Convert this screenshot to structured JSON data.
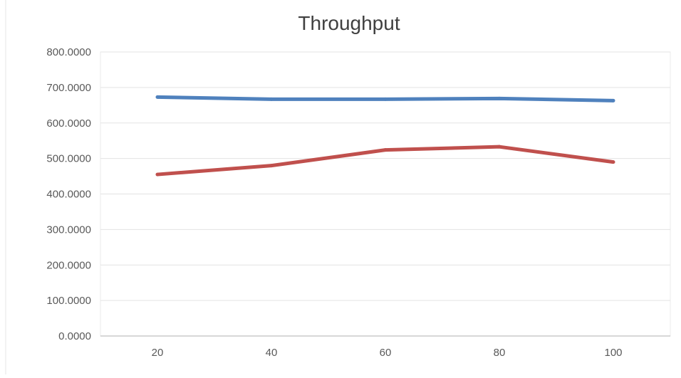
{
  "chart_data": {
    "type": "line",
    "title": "Throughput",
    "xlabel": "",
    "ylabel": "",
    "categories": [
      "20",
      "40",
      "60",
      "80",
      "100"
    ],
    "ylim": [
      0,
      800
    ],
    "yticks": [
      "0.0000",
      "100.0000",
      "200.0000",
      "300.0000",
      "400.0000",
      "500.0000",
      "600.0000",
      "700.0000",
      "800.0000"
    ],
    "grid": true,
    "legend": "none",
    "series": [
      {
        "color": "#4f81bd",
        "values": [
          673,
          667,
          667,
          669,
          663
        ]
      },
      {
        "color": "#c0504d",
        "values": [
          455,
          480,
          524,
          533,
          490
        ]
      }
    ]
  }
}
